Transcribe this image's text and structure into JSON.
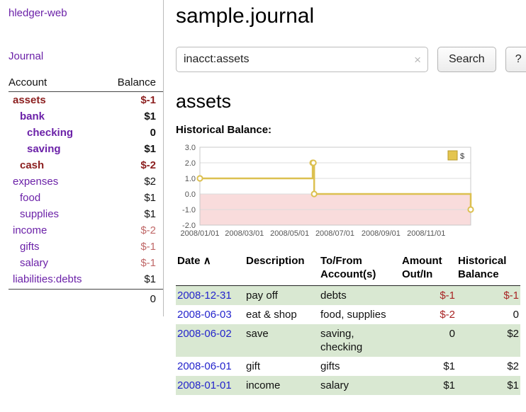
{
  "app": {
    "title": "hledger-web",
    "nav_journal": "Journal"
  },
  "colors": {
    "link_purple": "#6b21a8",
    "negative_strong": "#8c1f1f",
    "negative_light": "#c06868",
    "negative_table": "#a82424",
    "link_blue": "#2424cc",
    "row_highlight_green": "#d9e8d2"
  },
  "sidebar": {
    "header": {
      "account": "Account",
      "balance": "Balance"
    },
    "accounts": [
      {
        "name": "assets",
        "balance": "$-1",
        "indent": 0,
        "bold": true,
        "neg": true
      },
      {
        "name": "bank",
        "balance": "$1",
        "indent": 1,
        "bold": true,
        "neg": false
      },
      {
        "name": "checking",
        "balance": "0",
        "indent": 2,
        "bold": true,
        "neg": false
      },
      {
        "name": "saving",
        "balance": "$1",
        "indent": 2,
        "bold": true,
        "neg": false
      },
      {
        "name": "cash",
        "balance": "$-2",
        "indent": 1,
        "bold": true,
        "neg": true
      },
      {
        "name": "expenses",
        "balance": "$2",
        "indent": 0,
        "bold": false,
        "neg": false
      },
      {
        "name": "food",
        "balance": "$1",
        "indent": 1,
        "bold": false,
        "neg": false
      },
      {
        "name": "supplies",
        "balance": "$1",
        "indent": 1,
        "bold": false,
        "neg": false
      },
      {
        "name": "income",
        "balance": "$-2",
        "indent": 0,
        "bold": false,
        "neg": true
      },
      {
        "name": "gifts",
        "balance": "$-1",
        "indent": 1,
        "bold": false,
        "neg": true
      },
      {
        "name": "salary",
        "balance": "$-1",
        "indent": 1,
        "bold": false,
        "neg": true
      },
      {
        "name": "liabilities:debts",
        "balance": "$1",
        "indent": 0,
        "bold": false,
        "neg": false
      }
    ],
    "total": "0"
  },
  "main": {
    "title": "sample.journal",
    "search": {
      "value": "inacct:assets",
      "clear_icon": "×",
      "button": "Search",
      "help_button": "?"
    },
    "account_heading": "assets",
    "chart_label": "Historical Balance:"
  },
  "chart_data": {
    "type": "line",
    "step": true,
    "title": "Historical Balance",
    "series": [
      {
        "name": "$",
        "points": [
          {
            "date": "2008-01-01",
            "value": 1
          },
          {
            "date": "2008-06-01",
            "value": 2
          },
          {
            "date": "2008-06-02",
            "value": 2
          },
          {
            "date": "2008-06-03",
            "value": 0
          },
          {
            "date": "2008-12-31",
            "value": -1
          }
        ]
      }
    ],
    "ylim": [
      -2,
      3
    ],
    "yticks": [
      3,
      2,
      1,
      0,
      -1,
      -2
    ],
    "xrange": [
      "2008-01-01",
      "2008-12-31"
    ],
    "xticks": [
      "2008/01/01",
      "2008/03/01",
      "2008/05/01",
      "2008/07/01",
      "2008/09/01",
      "2008/11/01"
    ],
    "legend": {
      "label": "$",
      "color": "#e4c54f",
      "position": "top-right"
    },
    "line_color": "#dcc050",
    "negative_region_color": "#f9dcdc",
    "grid": true
  },
  "register": {
    "headers": {
      "date": "Date",
      "sort_asc_icon": "∧",
      "description": "Description",
      "account_line1": "To/From",
      "account_line2": "Account(s)",
      "amount_line1": "Amount",
      "amount_line2": "Out/In",
      "balance_line1": "Historical",
      "balance_line2": "Balance"
    },
    "rows": [
      {
        "date": "2008-12-31",
        "description": "pay off",
        "accounts": "debts",
        "amount": "$-1",
        "balance": "$-1",
        "amount_neg": true,
        "balance_neg": true
      },
      {
        "date": "2008-06-03",
        "description": "eat & shop",
        "accounts": "food, supplies",
        "amount": "$-2",
        "balance": "0",
        "amount_neg": true,
        "balance_neg": false
      },
      {
        "date": "2008-06-02",
        "description": "save",
        "accounts": "saving, checking",
        "amount": "0",
        "balance": "$2",
        "amount_neg": false,
        "balance_neg": false
      },
      {
        "date": "2008-06-01",
        "description": "gift",
        "accounts": "gifts",
        "amount": "$1",
        "balance": "$2",
        "amount_neg": false,
        "balance_neg": false
      },
      {
        "date": "2008-01-01",
        "description": "income",
        "accounts": "salary",
        "amount": "$1",
        "balance": "$1",
        "amount_neg": false,
        "balance_neg": false
      }
    ]
  }
}
